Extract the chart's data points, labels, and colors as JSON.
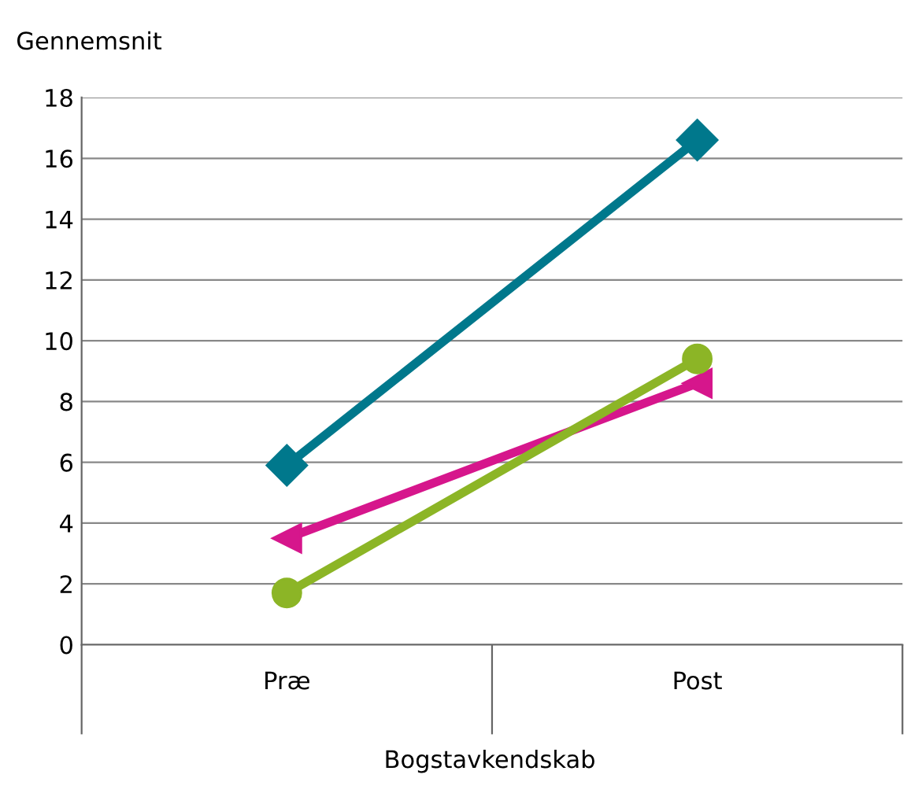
{
  "chart_data": {
    "type": "line",
    "ylabel": "Gennemsnit",
    "xlabel": "Bogstavkendskab",
    "categories": [
      "Præ",
      "Post"
    ],
    "series": [
      {
        "color": "#00788c",
        "values": [
          5.9,
          16.6
        ],
        "marker": "diamond"
      },
      {
        "color": "#d6168c",
        "values": [
          3.5,
          8.6
        ],
        "marker": "triangle"
      },
      {
        "color": "#8cb526",
        "values": [
          1.7,
          9.4
        ],
        "marker": "circle"
      }
    ],
    "ylim": [
      0,
      18
    ],
    "yticks": [
      0,
      2,
      4,
      6,
      8,
      10,
      12,
      14,
      16,
      18
    ],
    "grid": "y",
    "legend": false,
    "line_style": "solid"
  }
}
